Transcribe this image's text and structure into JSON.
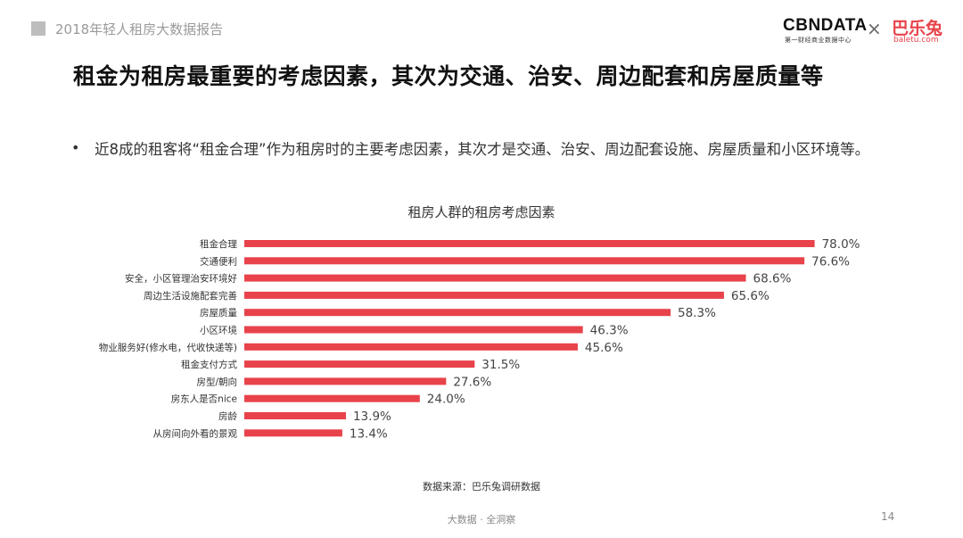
{
  "header": {
    "report_title": "2018年轻人租房大数据报告",
    "logo_cbndata": "CBNDATA",
    "logo_cbndata_sub": "第一财经商业数据中心",
    "logo_separator": "×",
    "logo_baletu": "巴乐兔",
    "logo_baletu_url": "baletu.com"
  },
  "headline": "租金为租房最重要的考虑因素，其次为交通、治安、周边配套和房屋质量等",
  "bullet": {
    "dot": "•",
    "text": "近8成的租客将“租金合理”作为租房时的主要考虑因素，其次才是交通、治安、周边配套设施、房屋质量和小区环境等。"
  },
  "chart_data": {
    "type": "bar",
    "orientation": "horizontal",
    "title": "租房人群的租房考虑因素",
    "categories": [
      "租金合理",
      "交通便利",
      "安全，小区管理治安环境好",
      "周边生活设施配套完善",
      "房屋质量",
      "小区环境",
      "物业服务好(修水电，代收快递等)",
      "租金支付方式",
      "房型/朝向",
      "房东人是否nice",
      "房龄",
      "从房间向外看的景观"
    ],
    "values": [
      78.0,
      76.6,
      68.6,
      65.6,
      58.3,
      46.3,
      45.6,
      31.5,
      27.6,
      24.0,
      13.9,
      13.4
    ],
    "value_labels": [
      "78.0%",
      "76.6%",
      "68.6%",
      "65.6%",
      "58.3%",
      "46.3%",
      "45.6%",
      "31.5%",
      "27.6%",
      "24.0%",
      "13.9%",
      "13.4%"
    ],
    "unit": "%",
    "bar_color": "#e8424a",
    "grid": false,
    "legend": "none"
  },
  "source": "数据来源：巴乐兔调研数据",
  "footer": {
    "text": "大数据 · 全洞察",
    "page_number": "14"
  }
}
